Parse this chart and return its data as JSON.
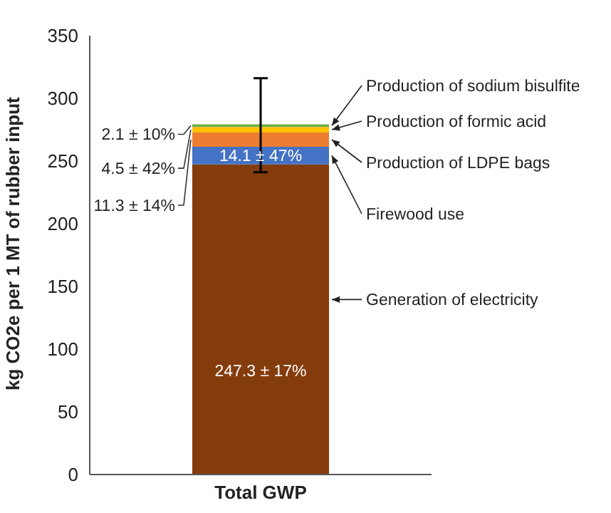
{
  "chart_data": {
    "type": "bar",
    "stacked": true,
    "ylabel": "kg CO2e per 1 MT of rubber input",
    "categories": [
      "Total GWP"
    ],
    "series": [
      {
        "name": "Generation of electricity",
        "color": "#843c0c",
        "values": [
          247.3
        ],
        "value_labels": [
          "247.3 ± 17%"
        ]
      },
      {
        "name": "Firewood use",
        "color": "#4472c4",
        "values": [
          14.1
        ],
        "value_labels": [
          "14.1 ± 47%"
        ]
      },
      {
        "name": "Production of LDPE bags",
        "color": "#ed7d31",
        "values": [
          11.3
        ],
        "value_labels": [
          "11.3 ± 14%"
        ]
      },
      {
        "name": "Production of formic acid",
        "color": "#ffc000",
        "values": [
          4.5
        ],
        "value_labels": [
          "4.5 ± 42%"
        ]
      },
      {
        "name": "Production of sodium bisulfite",
        "color": "#70ad47",
        "values": [
          2.1
        ],
        "value_labels": [
          "2.1 ± 10%"
        ],
        "errors": [
          [
            241,
            316
          ]
        ]
      }
    ],
    "ylim": [
      0,
      350
    ],
    "yticks": [
      0,
      50,
      100,
      150,
      200,
      250,
      300,
      350
    ],
    "grid": false
  }
}
